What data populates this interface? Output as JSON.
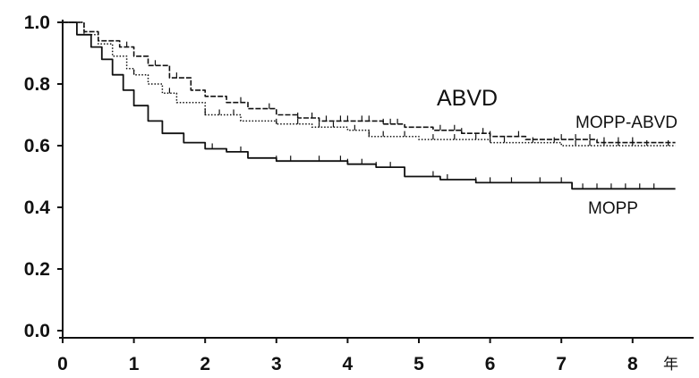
{
  "chart_data": {
    "type": "line",
    "title": "",
    "xlabel": "",
    "ylabel": "",
    "x_unit_label": "年",
    "xlim": [
      0,
      8.8
    ],
    "ylim": [
      0,
      1.0
    ],
    "x_ticks": [
      "0",
      "1",
      "2",
      "3",
      "4",
      "5",
      "6",
      "7",
      "8"
    ],
    "y_ticks": [
      "0.0",
      "0.2",
      "0.4",
      "0.6",
      "0.8",
      "1.0"
    ],
    "grid": false,
    "legend": "inline labels",
    "series": [
      {
        "name": "ABVD",
        "style": "dashed",
        "x": [
          0,
          0.3,
          0.5,
          0.8,
          1.0,
          1.2,
          1.5,
          1.8,
          2.0,
          2.3,
          2.6,
          3.0,
          3.3,
          3.6,
          4.0,
          4.5,
          4.8,
          5.2,
          5.6,
          6.0,
          6.5,
          7.0,
          7.5,
          8.0,
          8.6
        ],
        "y": [
          1.0,
          0.97,
          0.94,
          0.92,
          0.89,
          0.86,
          0.82,
          0.78,
          0.76,
          0.74,
          0.72,
          0.7,
          0.69,
          0.68,
          0.68,
          0.67,
          0.66,
          0.65,
          0.64,
          0.63,
          0.62,
          0.62,
          0.61,
          0.61,
          0.61
        ],
        "censor_x": [
          0.9,
          1.3,
          1.6,
          2.5,
          2.9,
          3.3,
          3.5,
          3.7,
          3.9,
          4.0,
          4.2,
          4.3,
          4.5,
          4.6,
          4.7,
          5.3,
          5.5,
          5.6,
          5.9,
          6.0,
          6.4,
          7.0,
          7.2,
          7.4,
          7.6,
          7.8,
          8.0
        ]
      },
      {
        "name": "MOPP-ABVD",
        "style": "dotted",
        "x": [
          0,
          0.3,
          0.5,
          0.7,
          0.9,
          1.0,
          1.2,
          1.4,
          1.6,
          2.0,
          2.5,
          3.0,
          3.5,
          4.0,
          4.3,
          5.0,
          5.5,
          6.0,
          6.5,
          7.0,
          7.5,
          8.0,
          8.6
        ],
        "y": [
          1.0,
          0.96,
          0.93,
          0.89,
          0.85,
          0.83,
          0.8,
          0.77,
          0.74,
          0.7,
          0.68,
          0.67,
          0.66,
          0.65,
          0.63,
          0.62,
          0.62,
          0.61,
          0.61,
          0.6,
          0.6,
          0.6,
          0.6
        ],
        "censor_x": [
          1.0,
          1.5,
          2.0,
          2.2,
          2.4,
          3.0,
          3.3,
          3.6,
          3.8,
          4.1,
          4.3,
          4.5,
          4.8,
          5.2,
          5.5,
          5.8,
          6.0,
          6.2,
          6.6,
          6.9,
          7.2,
          7.4,
          7.6,
          7.8,
          8.0,
          8.2,
          8.5
        ]
      },
      {
        "name": "MOPP",
        "style": "solid",
        "x": [
          0,
          0.2,
          0.4,
          0.55,
          0.7,
          0.85,
          1.0,
          1.2,
          1.4,
          1.7,
          2.0,
          2.3,
          2.6,
          3.0,
          3.5,
          4.0,
          4.4,
          4.8,
          5.3,
          5.8,
          6.5,
          7.0,
          7.15,
          7.5,
          8.0,
          8.6
        ],
        "y": [
          1.0,
          0.96,
          0.92,
          0.88,
          0.83,
          0.78,
          0.73,
          0.68,
          0.64,
          0.61,
          0.59,
          0.58,
          0.56,
          0.55,
          0.55,
          0.54,
          0.53,
          0.5,
          0.49,
          0.48,
          0.48,
          0.48,
          0.46,
          0.46,
          0.46,
          0.46
        ],
        "censor_x": [
          2.1,
          2.5,
          3.0,
          3.2,
          3.6,
          3.9,
          4.0,
          4.2,
          4.4,
          4.6,
          5.2,
          5.4,
          5.8,
          6.0,
          6.3,
          6.7,
          7.0,
          7.3,
          7.5,
          7.7,
          7.9,
          8.1,
          8.3
        ]
      }
    ]
  }
}
